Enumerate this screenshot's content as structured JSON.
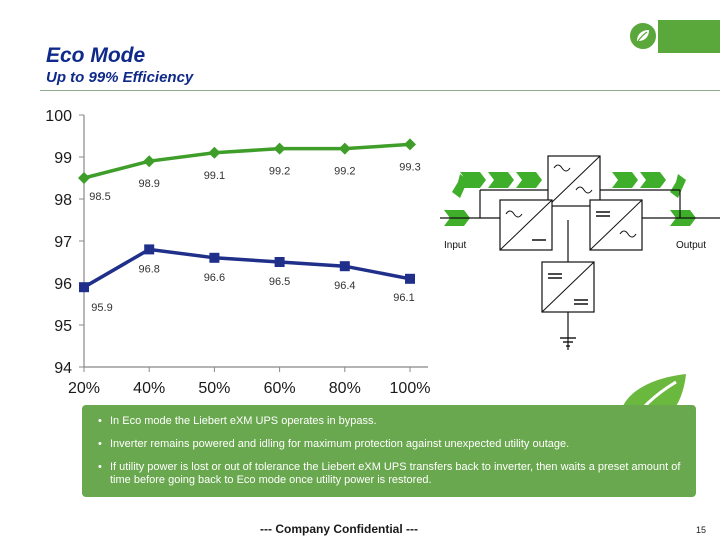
{
  "header": {
    "title": "Eco Mode",
    "subtitle": "Up to 99% Efficiency"
  },
  "colors": {
    "title": "#0f2a8a",
    "accent_green": "#5aa83c",
    "eco_series": "#3f9e2a",
    "inverter_series": "#1f2f8a",
    "bullet_box": "#6aa84f"
  },
  "chart_data": {
    "type": "line",
    "categories": [
      "20%",
      "40%",
      "50%",
      "60%",
      "80%",
      "100%"
    ],
    "ylim": [
      94,
      100
    ],
    "yticks": [
      "94",
      "95",
      "96",
      "97",
      "98",
      "99",
      "100"
    ],
    "grid": false,
    "title": "",
    "xlabel": "",
    "ylabel": "",
    "series": [
      {
        "values": [
          98.5,
          98.9,
          99.1,
          99.2,
          99.2,
          99.3
        ],
        "labels": [
          "98.5",
          "98.9",
          "99.1",
          "99.2",
          "99.2",
          "99.3"
        ],
        "marker": "diamond",
        "color": "#3f9e2a"
      },
      {
        "values": [
          95.9,
          96.8,
          96.6,
          96.5,
          96.4,
          96.1
        ],
        "labels": [
          "95.9",
          "96.8",
          "96.6",
          "96.5",
          "96.4",
          "96.1"
        ],
        "marker": "square",
        "color": "#1f2f8a"
      }
    ]
  },
  "diagram": {
    "input_label": "Input",
    "output_label": "Output"
  },
  "bullets": [
    "In Eco mode the Liebert eXM UPS operates in bypass.",
    "Inverter remains powered and idling for maximum protection against unexpected utility outage.",
    "If utility power is lost or out of tolerance the Liebert eXM UPS transfers back to inverter, then waits a preset amount of time before going back to Eco mode once utility power is restored."
  ],
  "footer": {
    "confidential": "--- Company Confidential ---",
    "page_number": "15"
  },
  "icons": [
    "leaf-badge-icon",
    "leaf-logo-icon",
    "sine-wave-icon",
    "dc-symbol-icon",
    "ground-icon",
    "arrow-chevron-icon"
  ]
}
